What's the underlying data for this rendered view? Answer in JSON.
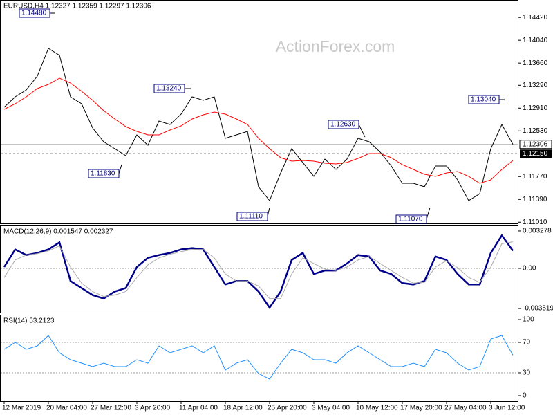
{
  "chart_data": [
    {
      "type": "line",
      "title": "EURUSD,H4  1.12327 1.12359 1.12297 1.12306",
      "watermark": "ActionForex.com",
      "series": [
        {
          "color": "#000000",
          "values": [
            1.12925,
            1.13098,
            1.13213,
            1.13443,
            1.13904,
            1.13789,
            1.13098,
            1.12982,
            1.12579,
            1.12349,
            1.12234,
            1.12119,
            1.12464,
            1.12291,
            1.12695,
            1.12637,
            1.1281,
            1.13098,
            1.1304,
            1.13098,
            1.12407,
            1.12464,
            1.12522,
            1.116,
            1.1137,
            1.11831,
            1.12234,
            1.12005,
            1.11774,
            1.12061,
            1.11888,
            1.12061,
            1.12407,
            1.12349,
            1.12176,
            1.11946,
            1.11658,
            1.11658,
            1.116,
            1.11946,
            1.11946,
            1.11716,
            1.1137,
            1.11485,
            1.12234,
            1.12637,
            1.12306
          ]
        },
        {
          "color": "#ff0000",
          "values": [
            1.1289,
            1.12982,
            1.13098,
            1.13236,
            1.13305,
            1.13409,
            1.13328,
            1.1319,
            1.1304,
            1.12867,
            1.12729,
            1.12602,
            1.12522,
            1.12464,
            1.12464,
            1.12545,
            1.12614,
            1.12729,
            1.12798,
            1.12844,
            1.1281,
            1.12729,
            1.12637,
            1.12407,
            1.12234,
            1.12084,
            1.12027,
            1.12038,
            1.12027,
            1.11992,
            1.11981,
            1.12005,
            1.12073,
            1.12153,
            1.12153,
            1.12084,
            1.11969,
            1.11888,
            1.11808,
            1.11773,
            1.11831,
            1.11854,
            1.11773,
            1.11658,
            1.11716,
            1.11888,
            1.12038
          ]
        }
      ],
      "ylim": [
        1.1099,
        1.1471
      ],
      "yticks": [
        {
          "value": 1.1442,
          "label": "1.14420"
        },
        {
          "value": 1.1404,
          "label": "1.14040"
        },
        {
          "value": 1.1366,
          "label": "1.13660"
        },
        {
          "value": 1.1329,
          "label": "1.13290"
        },
        {
          "value": 1.1291,
          "label": "1.12910"
        },
        {
          "value": 1.1253,
          "label": "1.12530"
        },
        {
          "value": 1.1177,
          "label": "1.11770"
        },
        {
          "value": 1.1139,
          "label": "1.11390"
        },
        {
          "value": 1.1101,
          "label": "1.11010"
        }
      ],
      "current_price": {
        "value": 1.12306,
        "label": "1.12306"
      },
      "support_line": {
        "value": 1.1215,
        "label": "1.12150"
      },
      "annotations": [
        "1.14480",
        "1.13240",
        "1.11830",
        "1.11110",
        "1.12630",
        "1.11070",
        "1.13040"
      ]
    },
    {
      "type": "line",
      "title": "MACD(12,26,9) 0.001547 0.002327",
      "series": [
        {
          "color": "#00008b",
          "values": [
            0.000123,
            0.001661,
            0.001169,
            0.001353,
            0.001661,
            0.002276,
            -0.001107,
            -0.001722,
            -0.002337,
            -0.002645,
            -0.00203,
            -0.001722,
            0.000123,
            0.000923,
            0.001169,
            0.001353,
            0.001661,
            0.001784,
            0.001661,
            0.000123,
            -0.001415,
            -0.001107,
            -0.001107,
            -0.00203,
            -0.003444,
            -0.00203,
            0.000738,
            0.001353,
            -0.000492,
            -0.000185,
            -0.000185,
            0.000431,
            0.001169,
            0.001046,
            -0.000185,
            -0.000492,
            -0.001292,
            -0.001415,
            -0.001107,
            0.001046,
            0.000738,
            -0.000492,
            -0.001415,
            -0.001415,
            0.001353,
            0.002891,
            0.001547
          ]
        },
        {
          "color": "#a9a9a9",
          "values": [
            -0.0008,
            0.000738,
            0.001169,
            0.001292,
            0.001538,
            0.001968,
            0.000123,
            -0.001292,
            -0.00203,
            -0.00246,
            -0.002337,
            -0.00203,
            -0.0008,
            0.000308,
            0.000923,
            0.00123,
            0.001476,
            0.001661,
            0.001661,
            0.000923,
            -0.000492,
            -0.001107,
            -0.001107,
            -0.001538,
            -0.002645,
            -0.002645,
            -0.000492,
            0.000923,
            0.000431,
            -6.2e-05,
            -0.000185,
            0.000123,
            0.000738,
            0.001046,
            0.000431,
            -0.000185,
            -0.0008,
            -0.001292,
            -0.00123,
            0.000123,
            0.000677,
            6.2e-05,
            -0.0008,
            -0.00123,
            0.000123,
            0.002153,
            0.002327
          ]
        }
      ],
      "ylim": [
        -0.00388,
        0.00376
      ],
      "yticks": [
        0.003278,
        {
          "value": 0,
          "label": "0.00"
        },
        -0.003519
      ],
      "levels": [
        0
      ]
    },
    {
      "type": "line",
      "title": "RSI(14) 53.2123",
      "categories": [
        "12 Mar 2019",
        null,
        null,
        null,
        "20 Mar 04:00",
        null,
        null,
        null,
        "27 Mar 12:00",
        null,
        null,
        null,
        "3 Apr 20:00",
        null,
        null,
        null,
        "11 Apr 04:00",
        null,
        null,
        null,
        "18 Apr 12:00",
        null,
        null,
        null,
        "25 Apr 20:00",
        null,
        null,
        null,
        "3 May 04:00",
        null,
        null,
        null,
        "10 May 12:00",
        null,
        null,
        null,
        "17 May 20:00",
        null,
        null,
        null,
        "27 May 04:00",
        null,
        null,
        null,
        "3 Jun 12:00",
        null,
        null
      ],
      "series": [
        {
          "color": "#1e90ff",
          "values": [
            60.9,
            70,
            60.9,
            65.5,
            79.1,
            56.4,
            47.3,
            42.7,
            38.2,
            42.7,
            38.2,
            38.2,
            47.3,
            42.7,
            65.5,
            56.4,
            60.9,
            65.5,
            56.4,
            65.5,
            33.6,
            42.7,
            47.3,
            29.1,
            21.8,
            42.7,
            60.9,
            56.4,
            47.3,
            47.3,
            42.7,
            56.4,
            65.5,
            56.4,
            47.3,
            38.2,
            38.2,
            42.7,
            38.2,
            60.9,
            56.4,
            42.7,
            33.6,
            38.2,
            74.5,
            79.1,
            53.2
          ]
        }
      ],
      "ylim": [
        -7.3,
        106.4
      ],
      "yticks": [
        100,
        70,
        30,
        0
      ],
      "levels": [
        70,
        30
      ]
    }
  ]
}
